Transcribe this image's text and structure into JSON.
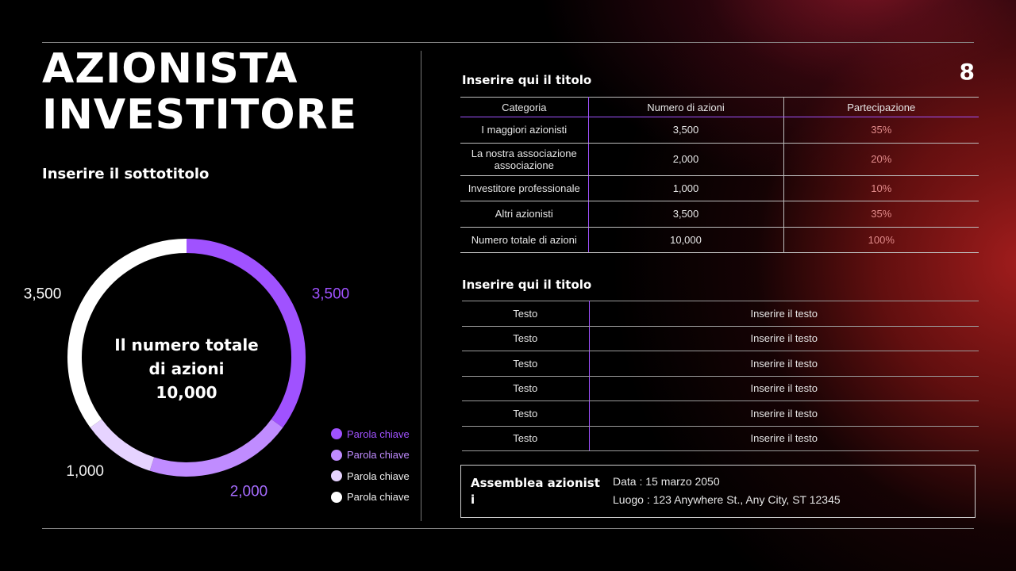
{
  "title": {
    "line1": "AZIONISTA",
    "line2": "INVESTITORE"
  },
  "subtitle": "Inserire il sottotitolo",
  "page_number": "8",
  "chart_data": {
    "type": "pie",
    "variant": "donut",
    "center_text": [
      "Il numero totale",
      "di azioni",
      "10,000"
    ],
    "slices": [
      {
        "label": "Parola chiave",
        "value": 3500,
        "value_label": "3,500",
        "color": "#a052ff"
      },
      {
        "label": "Parola chiave",
        "value": 2000,
        "value_label": "2,000",
        "color": "#c08cff"
      },
      {
        "label": "Parola chiave",
        "value": 1000,
        "value_label": "1,000",
        "color": "#e6d3ff"
      },
      {
        "label": "Parola chiave",
        "value": 3500,
        "value_label": "3,500",
        "color": "#ffffff"
      }
    ],
    "legend_position": "bottom-right"
  },
  "table1": {
    "title": "Inserire qui il titolo",
    "headers": [
      "Categoria",
      "Numero di azioni",
      "Partecipazione"
    ],
    "rows": [
      [
        "I maggiori azionisti",
        "3,500",
        "35%"
      ],
      [
        "La nostra associazione associazione",
        "2,000",
        "20%"
      ],
      [
        "Investitore professionale",
        "1,000",
        "10%"
      ],
      [
        "Altri azionisti",
        "3,500",
        "35%"
      ],
      [
        "Numero totale di azioni",
        "10,000",
        "100%"
      ]
    ]
  },
  "table2": {
    "title": "Inserire qui il titolo",
    "rows": [
      [
        "Testo",
        "Inserire il testo"
      ],
      [
        "Testo",
        "Inserire il testo"
      ],
      [
        "Testo",
        "Inserire il testo"
      ],
      [
        "Testo",
        "Inserire il testo"
      ],
      [
        "Testo",
        "Inserire il testo"
      ],
      [
        "Testo",
        "Inserire il testo"
      ]
    ]
  },
  "info": {
    "name": "Assemblea azionisti",
    "date": "Data : 15 marzo 2050",
    "place": "Luogo : 123 Anywhere St., Any City, ST 12345"
  }
}
